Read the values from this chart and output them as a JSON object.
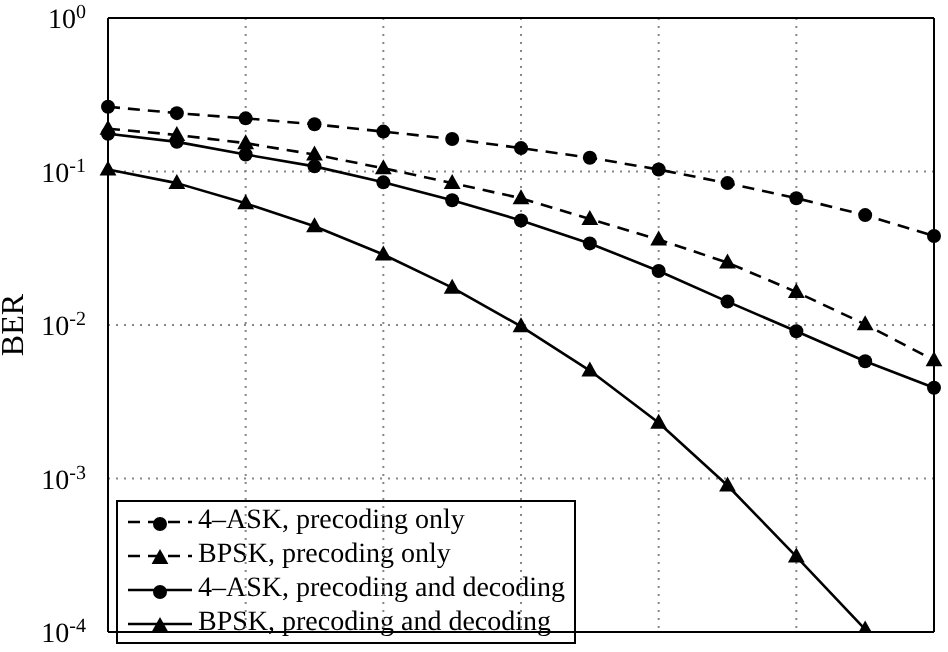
{
  "chart_data": {
    "type": "line",
    "ylabel": "BER",
    "categories": [
      null,
      null,
      null,
      null,
      null,
      null,
      null,
      null,
      null,
      null,
      null,
      null,
      null
    ],
    "ylim": [
      0.0001,
      1
    ],
    "yticks": [
      {
        "value": 1,
        "label": "10$^{0}$"
      },
      {
        "value": 0.1,
        "label": "10$^{-1}$"
      },
      {
        "value": 0.01,
        "label": "10$^{-2}$"
      },
      {
        "value": 0.001,
        "label": "10$^{-3}$"
      },
      {
        "value": 0.0001,
        "label": "10$^{-4}$"
      }
    ],
    "log": "y",
    "grid": true,
    "legend": "bottom left",
    "tick_labels": "y",
    "series": [
      {
        "name": "4–ASK, precoding only",
        "color": "#000000",
        "marker": "circle",
        "line_style": "dashed",
        "values": [
          0.264,
          0.24,
          0.222,
          0.203,
          0.182,
          0.163,
          0.142,
          0.123,
          0.103,
          0.084,
          0.067,
          0.052,
          0.038
        ]
      },
      {
        "name": "BPSK, precoding only",
        "color": "#000000",
        "marker": "triangle",
        "line_style": "dashed",
        "values": [
          0.19,
          0.173,
          0.153,
          0.129,
          0.105,
          0.084,
          0.067,
          0.049,
          0.036,
          0.0255,
          0.0164,
          0.0101,
          0.0059
        ]
      },
      {
        "name": "4–ASK, precoding and decoding",
        "color": "#000000",
        "marker": "circle",
        "line_style": "solid",
        "values": [
          0.176,
          0.156,
          0.129,
          0.108,
          0.085,
          0.065,
          0.048,
          0.034,
          0.0225,
          0.0142,
          0.0091,
          0.0058,
          0.0039
        ]
      },
      {
        "name": "BPSK, precoding and decoding",
        "color": "#000000",
        "marker": "triangle",
        "line_style": "solid",
        "values": [
          0.103,
          0.084,
          0.062,
          0.044,
          0.0288,
          0.0175,
          0.0098,
          0.00505,
          0.00231,
          0.0009,
          0.00031,
          0.000104,
          null
        ]
      }
    ]
  }
}
